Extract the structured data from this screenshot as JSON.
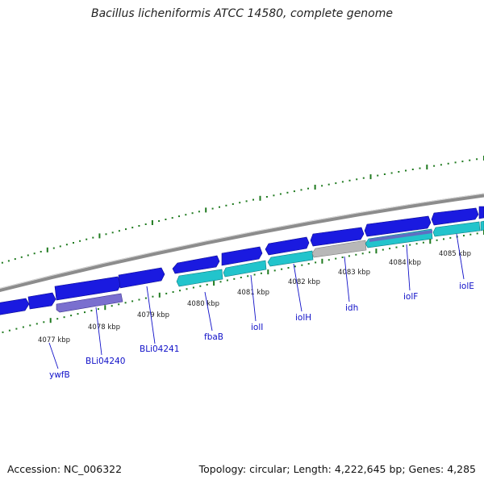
{
  "title": "Bacillus licheniformis ATCC 14580, complete genome",
  "footer": {
    "accession": "Accession: NC_006322",
    "summary": "Topology: circular; Length: 4,222,645 bp; Genes: 4,285"
  },
  "colors": {
    "forward_gene": "#1a1ae0",
    "reverse_gene": "#22c4cc",
    "pseudo_purple": "#7a6fcf",
    "gray_gene": "#b8b8b8",
    "backbone": "#8c8c8c",
    "tick_green": "#1f7a1f",
    "label_blue": "#1010c8"
  },
  "kbp_ticks": [
    {
      "label": "4077 kbp"
    },
    {
      "label": "4078 kbp"
    },
    {
      "label": "4079 kbp"
    },
    {
      "label": "4080 kbp"
    },
    {
      "label": "4081 kbp"
    },
    {
      "label": "4082 kbp"
    },
    {
      "label": "4083 kbp"
    },
    {
      "label": "4084 kbp"
    },
    {
      "label": "4085 kbp"
    }
  ],
  "gene_labels": [
    {
      "name": "ywfB"
    },
    {
      "name": "BLi04240"
    },
    {
      "name": "BLi04241"
    },
    {
      "name": "fbaB"
    },
    {
      "name": "iolI"
    },
    {
      "name": "iolH"
    },
    {
      "name": "idh"
    },
    {
      "name": "iolF"
    },
    {
      "name": "iolE"
    }
  ]
}
